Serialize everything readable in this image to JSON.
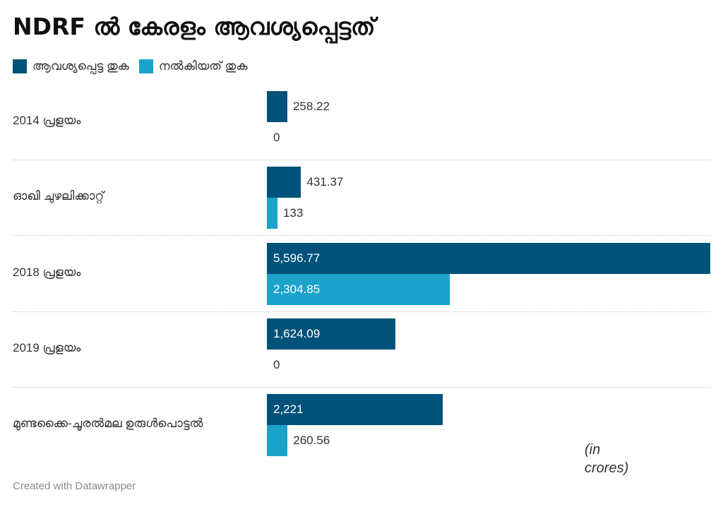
{
  "header": {
    "title": "NDRF ൽ കേരളം ആവശ്യപ്പെട്ടത്"
  },
  "legend": [
    {
      "label": "ആവശ്യപ്പെട്ട തുക",
      "color": "#00527a"
    },
    {
      "label": "നൽകിയത് തുക",
      "color": "#1ba3cc"
    }
  ],
  "chart_data": {
    "type": "bar",
    "orientation": "horizontal",
    "title": "NDRF ൽ കേരളം ആവശ്യപ്പെട്ടത്",
    "categories": [
      "2014 പ്രളയം",
      "ഓഖി ചുഴലിക്കാറ്റ്",
      "2018 പ്രളയം",
      "2019 പ്രളയം",
      "മുണ്ടക്കൈ-ചൂരൽമല ഉരുൾപൊട്ടൽ"
    ],
    "series": [
      {
        "name": "ആവശ്യപ്പെട്ട തുക",
        "color": "#00527a",
        "values": [
          258.22,
          431.37,
          5596.77,
          1624.09,
          2221
        ],
        "labels": [
          "258.22",
          "431.37",
          "5,596.77",
          "1,624.09",
          "2,221"
        ]
      },
      {
        "name": "നൽകിയത് തുക",
        "color": "#1ba3cc",
        "values": [
          0,
          133,
          2304.85,
          0,
          260.56
        ],
        "labels": [
          "0",
          "133",
          "2,304.85",
          "0",
          "260.56"
        ]
      }
    ],
    "xlim": [
      0,
      5596.77
    ],
    "grid": false,
    "legend_position": "top-left",
    "unit_note": "(in crores)"
  },
  "footer": {
    "credit": "Created with Datawrapper"
  }
}
